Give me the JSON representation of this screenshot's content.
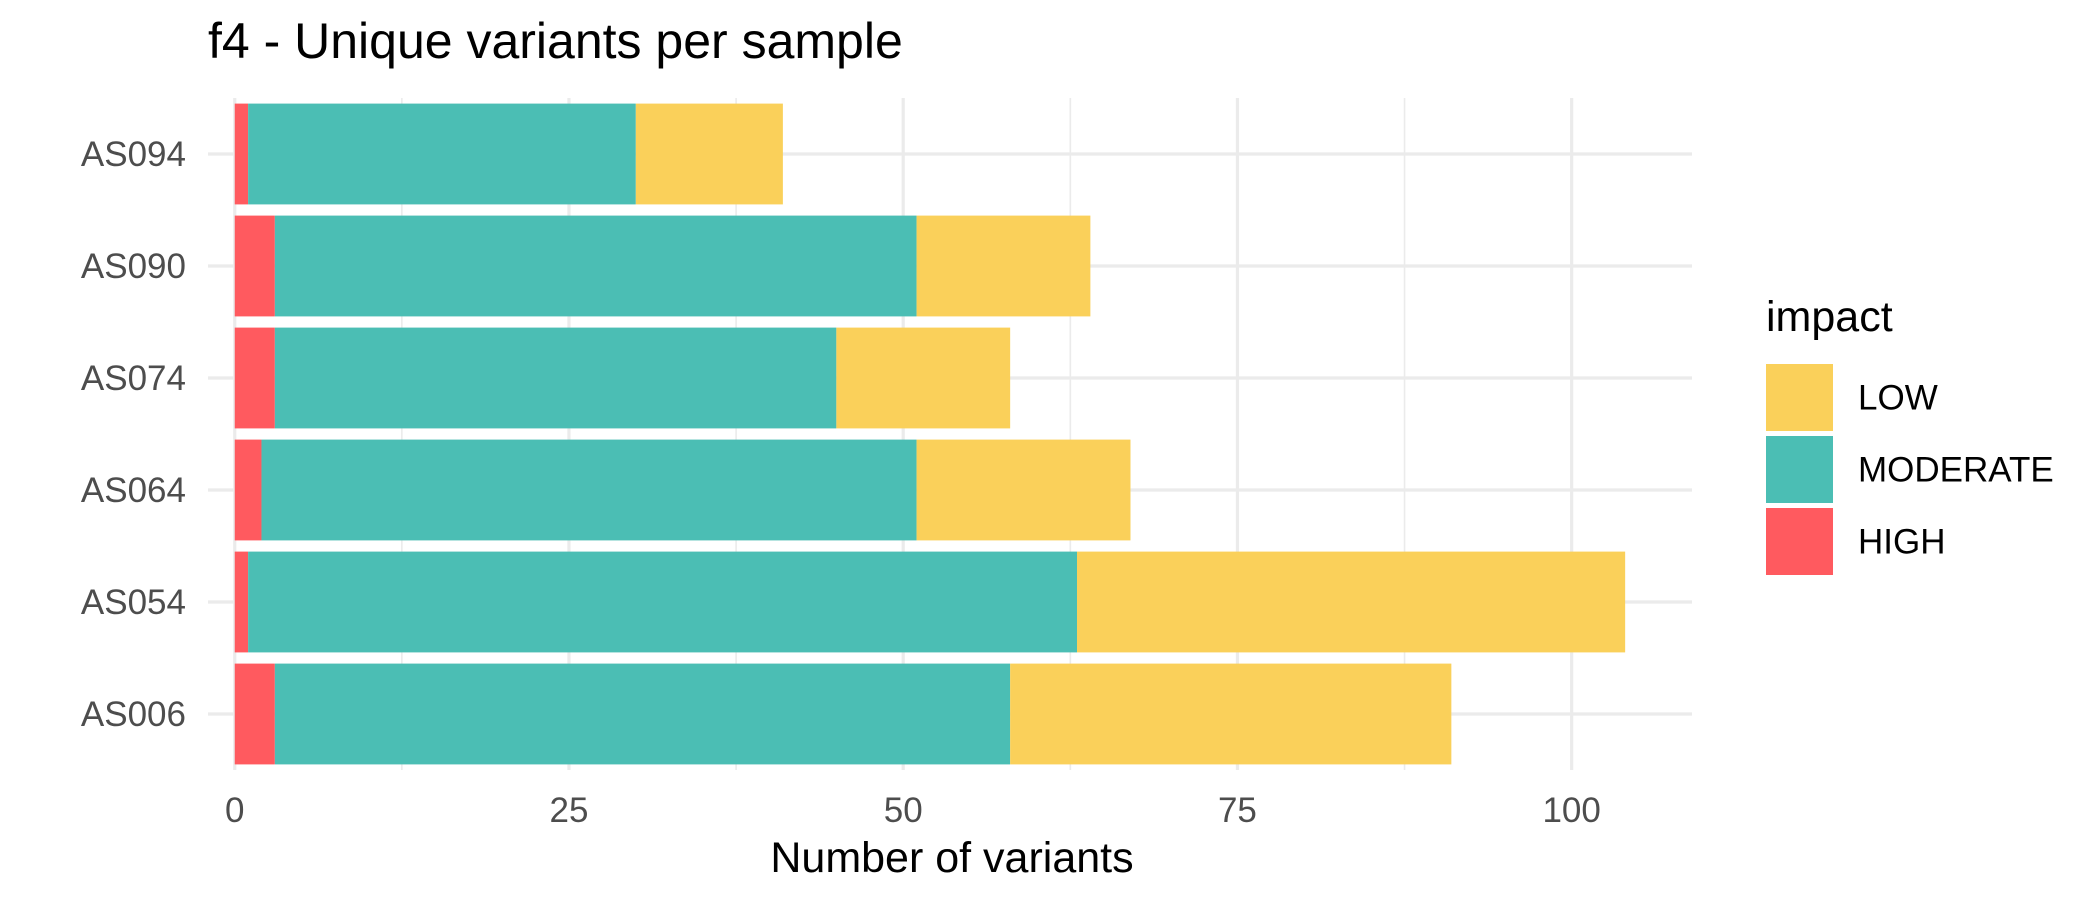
{
  "chart_data": {
    "type": "bar",
    "orientation": "horizontal",
    "stacked": true,
    "title": "f4 - Unique variants per sample",
    "xlabel": "Number of variants",
    "ylabel": "",
    "xlim": [
      -2.0,
      109.0
    ],
    "x_ticks": [
      0,
      25,
      50,
      75,
      100
    ],
    "x_tick_labels": [
      "0",
      "25",
      "50",
      "75",
      "100"
    ],
    "grid": true,
    "legend_position": "right",
    "legend_title": "impact",
    "categories": [
      "AS094",
      "AS090",
      "AS074",
      "AS064",
      "AS054",
      "AS006"
    ],
    "series": [
      {
        "name": "HIGH",
        "color": "#FF5A5F",
        "values": [
          1,
          3,
          3,
          2,
          1,
          3
        ]
      },
      {
        "name": "MODERATE",
        "color": "#4BBEB4",
        "values": [
          29,
          48,
          42,
          49,
          62,
          55
        ]
      },
      {
        "name": "LOW",
        "color": "#FAD05A",
        "values": [
          11,
          13,
          13,
          16,
          41,
          33
        ]
      }
    ],
    "legend_order": [
      "LOW",
      "MODERATE",
      "HIGH"
    ]
  }
}
